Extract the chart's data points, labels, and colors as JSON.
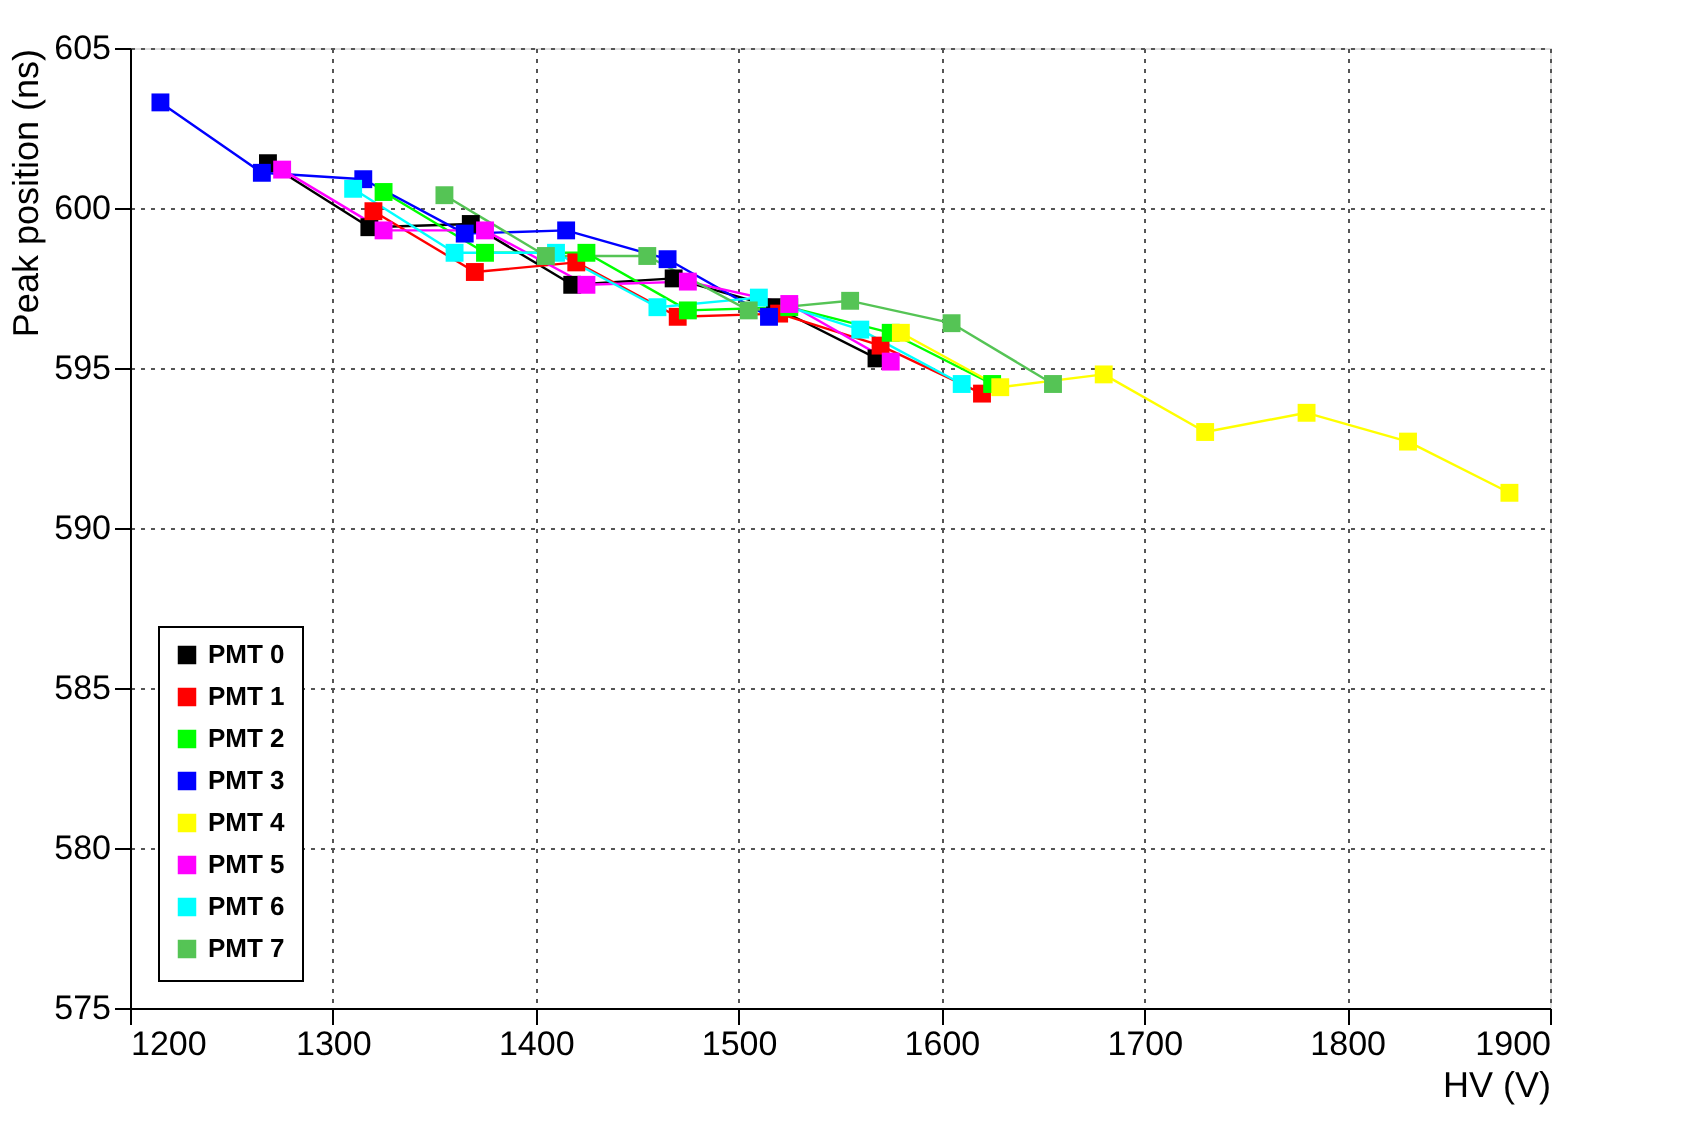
{
  "chart_data": {
    "type": "line",
    "xlabel": "HV (V)",
    "ylabel": "Peak position (ns)",
    "xlim": [
      1200,
      1900
    ],
    "xticks": [
      1200,
      1300,
      1400,
      1500,
      1600,
      1700,
      1800,
      1900
    ],
    "ylim": [
      575,
      605
    ],
    "yticks": [
      575,
      580,
      585,
      590,
      595,
      600,
      605
    ],
    "grid": true,
    "legend": "bottom left",
    "marker": "square",
    "line_style": "solid",
    "series": [
      {
        "name": "PMT 0",
        "color": "#000000",
        "x": [
          1268,
          1318,
          1368,
          1418,
          1468,
          1518,
          1568
        ],
        "values": [
          601.4,
          599.4,
          599.5,
          597.6,
          597.8,
          596.9,
          595.3
        ]
      },
      {
        "name": "PMT 1",
        "color": "#ff0000",
        "x": [
          1320,
          1370,
          1420,
          1470,
          1520,
          1570,
          1620
        ],
        "values": [
          599.9,
          598.0,
          598.3,
          596.6,
          596.7,
          595.7,
          594.2
        ]
      },
      {
        "name": "PMT 2",
        "color": "#00ff00",
        "x": [
          1325,
          1375,
          1425,
          1475,
          1525,
          1575,
          1625
        ],
        "values": [
          600.5,
          598.6,
          598.6,
          596.8,
          596.9,
          596.1,
          594.5
        ]
      },
      {
        "name": "PMT 3",
        "color": "#0000ff",
        "x": [
          1215,
          1265,
          1315,
          1365,
          1415,
          1465,
          1515
        ],
        "values": [
          603.3,
          601.1,
          600.9,
          599.2,
          599.3,
          598.4,
          596.6
        ]
      },
      {
        "name": "PMT 4",
        "color": "#ffff00",
        "x": [
          1580,
          1629,
          1680,
          1730,
          1780,
          1830,
          1880
        ],
        "values": [
          596.1,
          594.4,
          594.8,
          593.0,
          593.6,
          592.7,
          591.1
        ]
      },
      {
        "name": "PMT 5",
        "color": "#ff00ff",
        "x": [
          1275,
          1325,
          1375,
          1425,
          1475,
          1525,
          1575
        ],
        "values": [
          601.2,
          599.3,
          599.3,
          597.6,
          597.7,
          597.0,
          595.2
        ]
      },
      {
        "name": "PMT 6",
        "color": "#00ffff",
        "x": [
          1310,
          1360,
          1410,
          1460,
          1510,
          1560,
          1610
        ],
        "values": [
          600.6,
          598.6,
          598.6,
          596.9,
          597.2,
          596.2,
          594.5
        ]
      },
      {
        "name": "PMT 7",
        "color": "#55c455",
        "x": [
          1355,
          1405,
          1455,
          1505,
          1555,
          1605,
          1655
        ],
        "values": [
          600.4,
          598.5,
          598.5,
          596.8,
          597.1,
          596.4,
          594.5
        ]
      }
    ]
  }
}
